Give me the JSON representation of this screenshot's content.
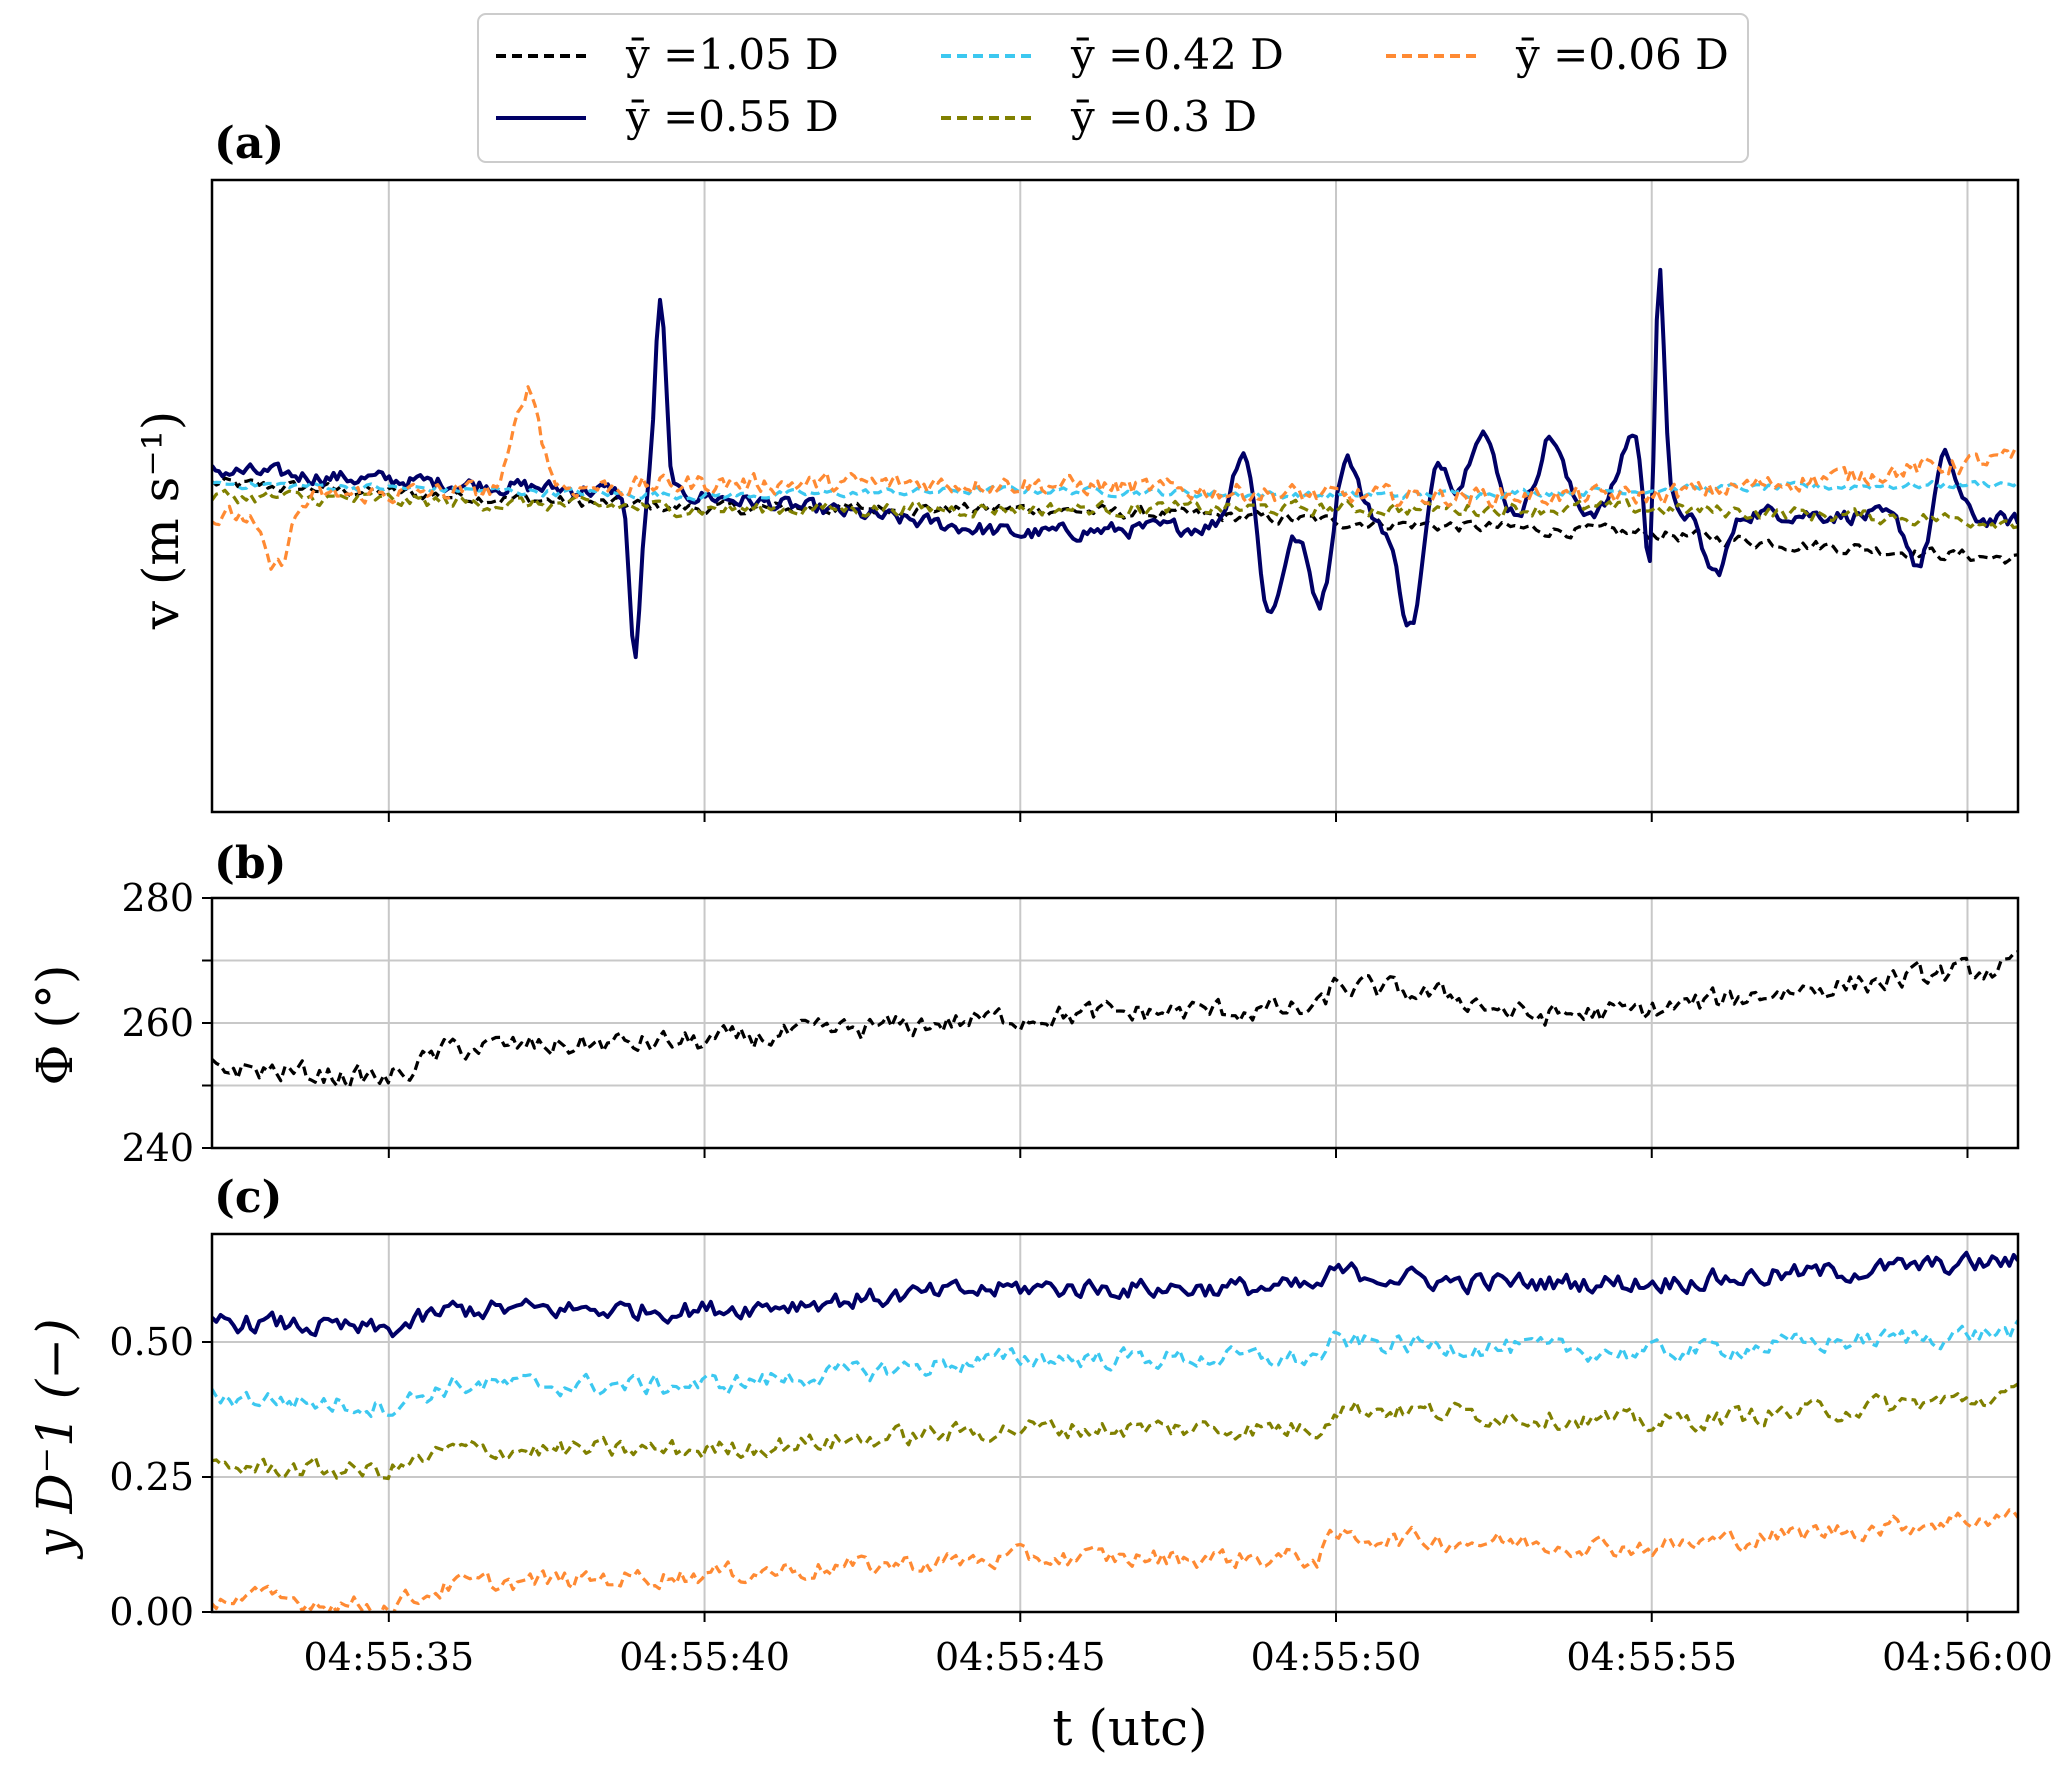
{
  "chart_data": [
    {
      "panel": "(a)",
      "type": "line",
      "title": "",
      "xlabel": "",
      "ylabel": "v (m s⁻¹)",
      "x_ticks": [
        "04:55:35",
        "04:55:40",
        "04:55:45",
        "04:55:50",
        "04:55:55",
        "04:56:00"
      ],
      "x_range_s": [
        32.2,
        60.8
      ],
      "y_ticks": [],
      "y_range": [
        -2.5,
        2.5
      ],
      "grid": "vertical",
      "series": [
        {
          "name": "ȳ =1.05 D",
          "color": "#000000",
          "dash": "dashed",
          "trend": [
            [
              32.2,
              0.1
            ],
            [
              40,
              -0.1
            ],
            [
              45,
              -0.1
            ],
            [
              50,
              -0.2
            ],
            [
              55,
              -0.3
            ],
            [
              60.8,
              -0.5
            ]
          ],
          "noise": 0.08,
          "spikes": []
        },
        {
          "name": "ȳ =0.55 D",
          "color": "#000066",
          "dash": "solid",
          "trend": [
            [
              32.2,
              0.2
            ],
            [
              36,
              0.1
            ],
            [
              40,
              0.0
            ],
            [
              45,
              -0.3
            ],
            [
              50,
              -0.2
            ],
            [
              55,
              -0.1
            ],
            [
              60.8,
              -0.2
            ]
          ],
          "noise": 0.1,
          "spikes": [
            [
              38.9,
              -1.3
            ],
            [
              39.3,
              1.5
            ],
            [
              48.6,
              0.8
            ],
            [
              48.9,
              -0.9
            ],
            [
              49.8,
              -0.8
            ],
            [
              50.1,
              0.7
            ],
            [
              51.2,
              -0.9
            ],
            [
              51.6,
              0.5
            ],
            [
              52.3,
              0.7
            ],
            [
              53.4,
              0.6
            ],
            [
              54.7,
              0.6
            ],
            [
              55.0,
              -1.5
            ],
            [
              55.1,
              2.5
            ],
            [
              56.0,
              -0.5
            ],
            [
              59.3,
              -0.5
            ],
            [
              59.6,
              0.6
            ]
          ]
        },
        {
          "name": "ȳ =0.42 D",
          "color": "#3cc8f0",
          "dash": "dashed",
          "trend": [
            [
              32.2,
              0.1
            ],
            [
              40,
              0.0
            ],
            [
              45,
              0.05
            ],
            [
              50,
              0.0
            ],
            [
              55,
              0.05
            ],
            [
              60.8,
              0.1
            ]
          ],
          "noise": 0.05,
          "spikes": []
        },
        {
          "name": "ȳ =0.3 D",
          "color": "#808000",
          "dash": "dashed",
          "trend": [
            [
              32.2,
              0.0
            ],
            [
              40,
              -0.1
            ],
            [
              45,
              -0.1
            ],
            [
              50,
              -0.1
            ],
            [
              55,
              -0.1
            ],
            [
              60.8,
              -0.2
            ]
          ],
          "noise": 0.09,
          "spikes": []
        },
        {
          "name": "ȳ =0.06 D",
          "color": "#ff8a33",
          "dash": "dashed",
          "trend": [
            [
              32.2,
              -0.2
            ],
            [
              34,
              0.0
            ],
            [
              40,
              0.1
            ],
            [
              45,
              0.1
            ],
            [
              50,
              0.0
            ],
            [
              55,
              0.0
            ],
            [
              60.8,
              0.3
            ]
          ],
          "noise": 0.12,
          "spikes": [
            [
              37.2,
              0.8
            ],
            [
              33.2,
              -0.5
            ]
          ]
        }
      ],
      "legend": "top-center"
    },
    {
      "panel": "(b)",
      "type": "line",
      "xlabel": "",
      "ylabel": "Φ (°)",
      "x_ticks": [
        "04:55:35",
        "04:55:40",
        "04:55:45",
        "04:55:50",
        "04:55:55",
        "04:56:00"
      ],
      "x_range_s": [
        32.2,
        60.8
      ],
      "y_ticks": [
        "240",
        "260",
        "280"
      ],
      "y_range": [
        240,
        280
      ],
      "grid": "both",
      "series": [
        {
          "name": "Φ",
          "color": "#000000",
          "dash": "dashed",
          "trend": [
            [
              32.2,
              253
            ],
            [
              35,
              251
            ],
            [
              36,
              256
            ],
            [
              40,
              257
            ],
            [
              45,
              261
            ],
            [
              48,
              262
            ],
            [
              49.7,
              262
            ],
            [
              50,
              266
            ],
            [
              52,
              264
            ],
            [
              53,
              261
            ],
            [
              55,
              262
            ],
            [
              57,
              265
            ],
            [
              60.8,
              269
            ]
          ],
          "noise": 3.0
        }
      ]
    },
    {
      "panel": "(c)",
      "type": "line",
      "xlabel": "t (utc)",
      "ylabel": "y D⁻1 (−)",
      "x_ticks": [
        "04:55:35",
        "04:55:40",
        "04:55:45",
        "04:55:50",
        "04:55:55",
        "04:56:00"
      ],
      "x_range_s": [
        32.2,
        60.8
      ],
      "y_ticks": [
        "0.00",
        "0.25",
        "0.50"
      ],
      "y_range": [
        0,
        0.7
      ],
      "grid": "both",
      "series": [
        {
          "name": "ȳ =0.55 D",
          "color": "#000066",
          "dash": "solid",
          "trend": [
            [
              32.2,
              0.54
            ],
            [
              35,
              0.52
            ],
            [
              36,
              0.56
            ],
            [
              40,
              0.56
            ],
            [
              45,
              0.6
            ],
            [
              49.7,
              0.6
            ],
            [
              50,
              0.63
            ],
            [
              52,
              0.61
            ],
            [
              55,
              0.61
            ],
            [
              60.8,
              0.65
            ]
          ],
          "noise": 0.03
        },
        {
          "name": "ȳ =0.42 D",
          "color": "#3cc8f0",
          "dash": "dashed",
          "trend": [
            [
              32.2,
              0.4
            ],
            [
              35,
              0.38
            ],
            [
              36,
              0.42
            ],
            [
              40,
              0.42
            ],
            [
              45,
              0.47
            ],
            [
              49.7,
              0.47
            ],
            [
              50,
              0.5
            ],
            [
              55,
              0.48
            ],
            [
              60.8,
              0.52
            ]
          ],
          "noise": 0.03
        },
        {
          "name": "ȳ =0.3 D",
          "color": "#808000",
          "dash": "dashed",
          "trend": [
            [
              32.2,
              0.27
            ],
            [
              35,
              0.26
            ],
            [
              36,
              0.3
            ],
            [
              40,
              0.3
            ],
            [
              45,
              0.34
            ],
            [
              49.7,
              0.34
            ],
            [
              50,
              0.38
            ],
            [
              55,
              0.35
            ],
            [
              60.8,
              0.4
            ]
          ],
          "noise": 0.03
        },
        {
          "name": "ȳ =0.06 D",
          "color": "#ff8a33",
          "dash": "dashed",
          "trend": [
            [
              32.2,
              0.03
            ],
            [
              35,
              0.01
            ],
            [
              36,
              0.05
            ],
            [
              40,
              0.07
            ],
            [
              45,
              0.1
            ],
            [
              49.7,
              0.1
            ],
            [
              50,
              0.14
            ],
            [
              55,
              0.12
            ],
            [
              60.8,
              0.18
            ]
          ],
          "noise": 0.03
        }
      ]
    }
  ],
  "legend_items": [
    {
      "name": "ȳ =1.05 D",
      "color": "#000000",
      "dash": "dashed"
    },
    {
      "name": "ȳ =0.42 D",
      "color": "#3cc8f0",
      "dash": "dashed"
    },
    {
      "name": "ȳ =0.06 D",
      "color": "#ff8a33",
      "dash": "dashed"
    },
    {
      "name": "ȳ =0.55 D",
      "color": "#000066",
      "dash": "solid"
    },
    {
      "name": "ȳ =0.3 D",
      "color": "#808000",
      "dash": "dashed"
    }
  ],
  "labels": {
    "panel_a": "(a)",
    "panel_b": "(b)",
    "panel_c": "(c)",
    "ylabel_a": "v (m s⁻¹)",
    "ylabel_b": "Φ (°)",
    "ylabel_c": "y D⁻1 (−)",
    "xlabel": "t (utc)"
  }
}
